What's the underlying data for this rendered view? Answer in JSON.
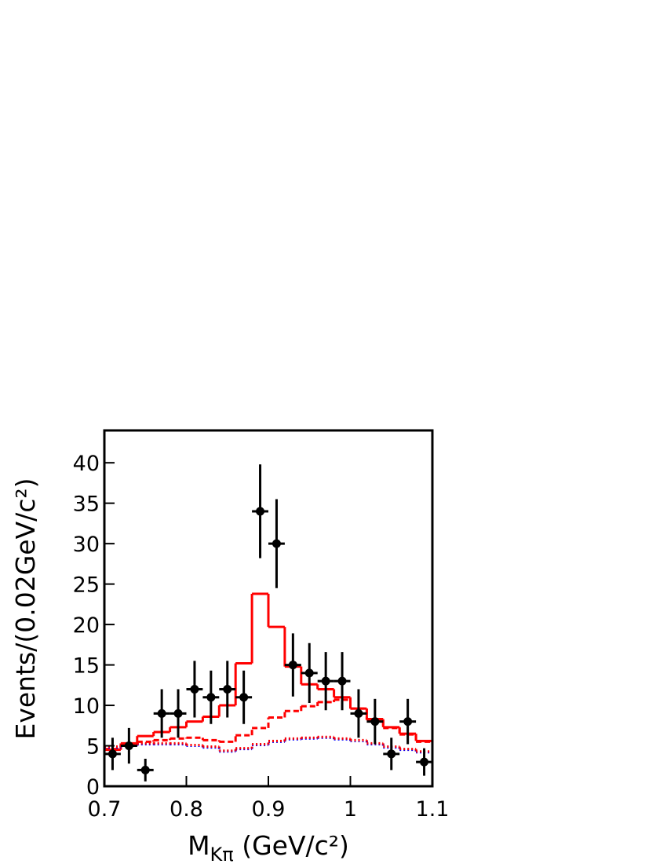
{
  "chart_data": {
    "type": "hist",
    "xlabel": [
      "M",
      "Kπ",
      " (GeV/c²)"
    ],
    "ylabel": "Events/(0.02GeV/c²)",
    "xlim": [
      0.7,
      1.1
    ],
    "ylim": [
      0,
      44
    ],
    "xticks": [
      0.7,
      0.8,
      0.9,
      1,
      1.1
    ],
    "yticks": [
      0,
      5,
      10,
      15,
      20,
      25,
      30,
      35,
      40
    ],
    "bins": [
      0.7,
      0.72,
      0.74,
      0.76,
      0.78,
      0.8,
      0.82,
      0.84,
      0.86,
      0.88,
      0.9,
      0.92,
      0.94,
      0.96,
      0.98,
      1.0,
      1.02,
      1.04,
      1.06,
      1.08,
      1.1
    ],
    "points": {
      "color": "#000000",
      "x": [
        0.71,
        0.73,
        0.75,
        0.77,
        0.79,
        0.81,
        0.83,
        0.85,
        0.87,
        0.89,
        0.91,
        0.93,
        0.95,
        0.97,
        0.99,
        1.01,
        1.03,
        1.05,
        1.07,
        1.09
      ],
      "values": [
        4,
        5,
        2,
        9,
        9,
        12,
        11,
        12,
        11,
        34,
        30,
        15,
        14,
        13,
        13,
        9,
        8,
        4,
        8,
        3
      ],
      "errors": [
        2,
        2.2,
        1.4,
        3,
        3,
        3.5,
        3.3,
        3.5,
        3.3,
        5.8,
        5.5,
        3.9,
        3.7,
        3.6,
        3.6,
        3,
        2.8,
        2,
        2.8,
        1.7
      ]
    },
    "histograms": [
      {
        "color": "#ff0000",
        "style": "solid",
        "values": [
          4.5,
          5.3,
          6.2,
          6.7,
          7.3,
          8.0,
          8.6,
          10.0,
          15.2,
          23.8,
          19.7,
          14.8,
          12.6,
          12.0,
          11.0,
          9.6,
          8.3,
          7.3,
          6.5,
          5.6
        ]
      },
      {
        "color": "#ff0000",
        "style": "dashed",
        "values": [
          4.6,
          5.1,
          5.5,
          5.7,
          5.9,
          6.0,
          5.7,
          5.5,
          6.3,
          7.2,
          8.5,
          9.3,
          9.9,
          10.4,
          10.7,
          9.6,
          8.2,
          7.2,
          6.4,
          5.5
        ]
      },
      {
        "color": "#0000ff",
        "style": "dotted",
        "values": [
          4.8,
          5.0,
          5.2,
          5.2,
          5.2,
          5.0,
          4.8,
          4.3,
          4.6,
          5.1,
          5.5,
          5.8,
          5.9,
          6.0,
          5.8,
          5.6,
          5.2,
          4.8,
          4.5,
          4.2
        ]
      },
      {
        "color": "#ff0000",
        "style": "dotted",
        "values": [
          4.9,
          5.1,
          5.3,
          5.3,
          5.3,
          5.1,
          4.9,
          4.4,
          4.7,
          5.2,
          5.6,
          5.9,
          6.0,
          6.1,
          5.9,
          5.7,
          5.3,
          4.9,
          4.6,
          4.3
        ]
      }
    ]
  }
}
